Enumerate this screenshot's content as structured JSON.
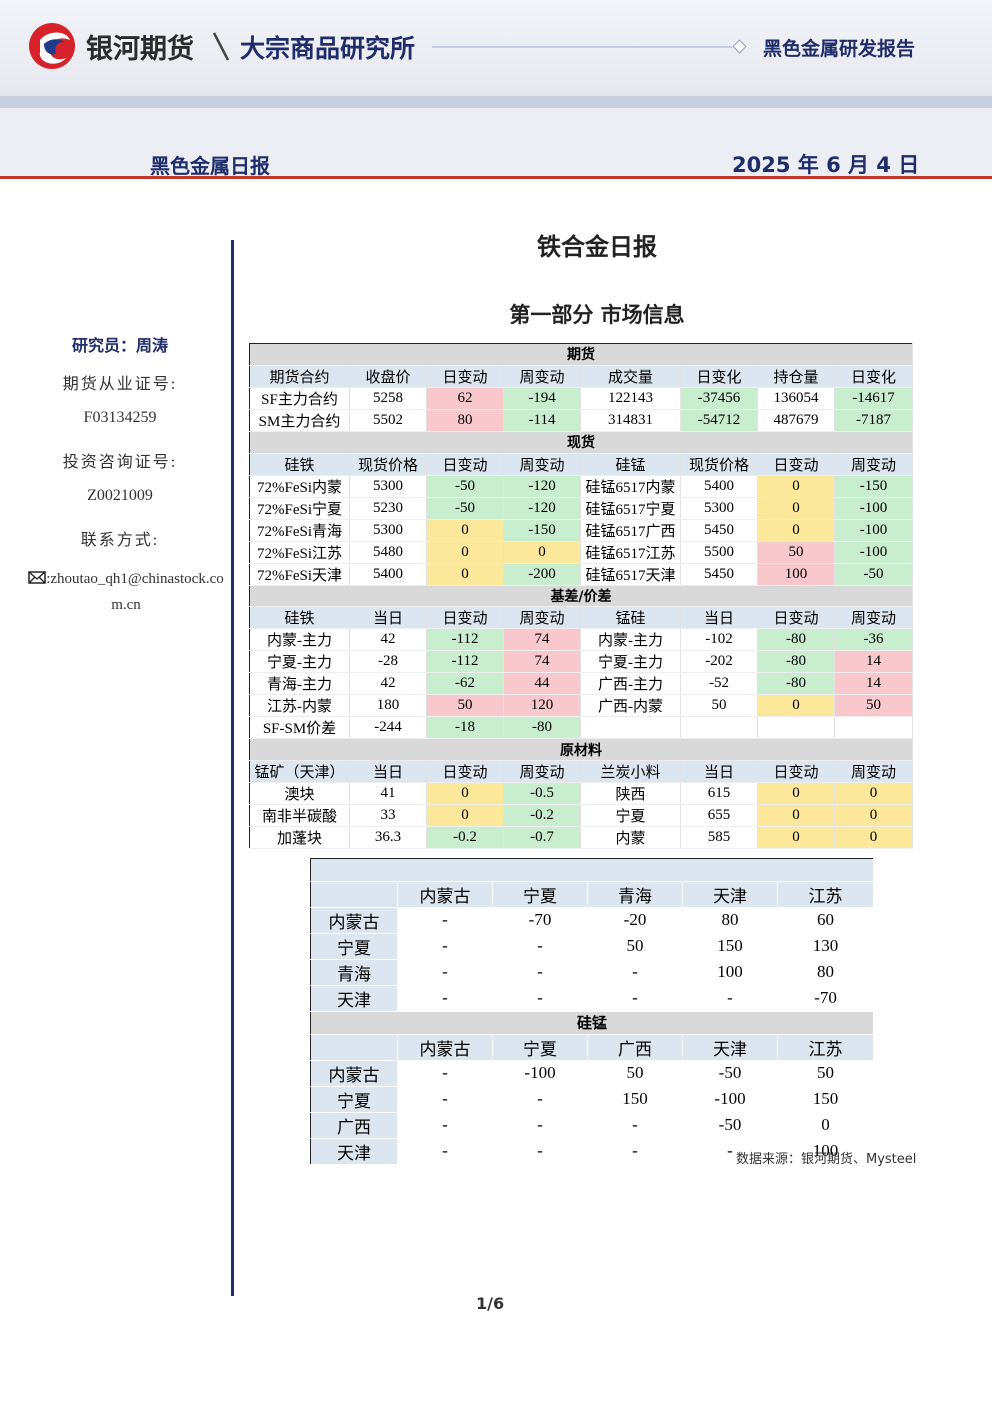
{
  "header": {
    "brand": "银河期货",
    "institute": "大宗商品研究所",
    "report_type": "黑色金属研发报告",
    "subtitle": "黑色金属日报",
    "date": "2025 年 6 月 4 日"
  },
  "sidebar": {
    "researcher": "研究员：周涛",
    "cert_label": "期货从业证号:",
    "cert": "F03134259",
    "consult_label": "投资咨询证号:",
    "consult": "Z0021009",
    "contact_label": "联系方式:",
    "email": ":zhoutao_qh1@chinastock.com.cn"
  },
  "main": {
    "title": "铁合金日报",
    "section": "第一部分 市场信息"
  },
  "market_table": {
    "change_colors": {
      "up": "#f8c8cc",
      "down": "#c9edcf",
      "flat": "#fce89a"
    },
    "sections": [
      {
        "title": "期货",
        "header": [
          "期货合约",
          "收盘价",
          "日变动",
          "周变动",
          "成交量",
          "日变化",
          "持仓量",
          "日变化"
        ],
        "rows": [
          [
            "SF主力合约",
            5258,
            62,
            -194,
            122143,
            -37456,
            136054,
            -14617
          ],
          [
            "SM主力合约",
            5502,
            80,
            -114,
            314831,
            -54712,
            487679,
            -7187
          ]
        ]
      },
      {
        "title": "现货",
        "header": [
          "硅铁",
          "现货价格",
          "日变动",
          "周变动",
          "硅锰",
          "现货价格",
          "日变动",
          "周变动"
        ],
        "rows": [
          [
            "72%FeSi内蒙",
            5300,
            -50,
            -120,
            "硅锰6517内蒙",
            5400,
            0,
            -150
          ],
          [
            "72%FeSi宁夏",
            5230,
            -50,
            -120,
            "硅锰6517宁夏",
            5300,
            0,
            -100
          ],
          [
            "72%FeSi青海",
            5300,
            0,
            -150,
            "硅锰6517广西",
            5450,
            0,
            -100
          ],
          [
            "72%FeSi江苏",
            5480,
            0,
            0,
            "硅锰6517江苏",
            5500,
            50,
            -100
          ],
          [
            "72%FeSi天津",
            5400,
            0,
            -200,
            "硅锰6517天津",
            5450,
            100,
            -50
          ]
        ]
      },
      {
        "title": "基差/价差",
        "header": [
          "硅铁",
          "当日",
          "日变动",
          "周变动",
          "锰硅",
          "当日",
          "日变动",
          "周变动"
        ],
        "rows": [
          [
            "内蒙-主力",
            42,
            -112,
            74,
            "内蒙-主力",
            -102,
            -80,
            -36
          ],
          [
            "宁夏-主力",
            -28,
            -112,
            74,
            "宁夏-主力",
            -202,
            -80,
            14
          ],
          [
            "青海-主力",
            42,
            -62,
            44,
            "广西-主力",
            -52,
            -80,
            14
          ],
          [
            "江苏-内蒙",
            180,
            50,
            120,
            "广西-内蒙",
            50,
            0,
            50
          ],
          [
            "SF-SM价差",
            -244,
            -18,
            -80,
            null,
            null,
            null,
            null
          ]
        ]
      },
      {
        "title": "原材料",
        "header": [
          "锰矿（天津）",
          "当日",
          "日变动",
          "周变动",
          "兰炭小料",
          "当日",
          "日变动",
          "周变动"
        ],
        "rows": [
          [
            "澳块",
            41,
            0,
            -0.5,
            "陕西",
            615,
            0,
            0
          ],
          [
            "南非半碳酸",
            33,
            0,
            -0.2,
            "宁夏",
            655,
            0,
            0
          ],
          [
            "加蓬块",
            36.3,
            -0.2,
            -0.7,
            "内蒙",
            585,
            0,
            0
          ]
        ]
      }
    ]
  },
  "spread_table": {
    "blocks": [
      {
        "header": [
          "内蒙古",
          "宁夏",
          "青海",
          "天津",
          "江苏"
        ],
        "rows": [
          [
            "内蒙古",
            "-",
            -70,
            -20,
            80,
            60
          ],
          [
            "宁夏",
            "-",
            "-",
            50,
            150,
            130
          ],
          [
            "青海",
            "-",
            "-",
            "-",
            100,
            80
          ],
          [
            "天津",
            "-",
            "-",
            "-",
            "-",
            -70
          ]
        ]
      },
      {
        "title": "硅锰",
        "header": [
          "内蒙古",
          "宁夏",
          "广西",
          "天津",
          "江苏"
        ],
        "rows": [
          [
            "内蒙古",
            "-",
            -100,
            50,
            -50,
            50
          ],
          [
            "宁夏",
            "-",
            "-",
            150,
            -100,
            150
          ],
          [
            "广西",
            "-",
            "-",
            "-",
            -50,
            0
          ],
          [
            "天津",
            "-",
            "-",
            "-",
            "-",
            100
          ]
        ]
      }
    ]
  },
  "footer": {
    "source": "数据来源：银河期货、Mysteel",
    "page": "1/6"
  }
}
